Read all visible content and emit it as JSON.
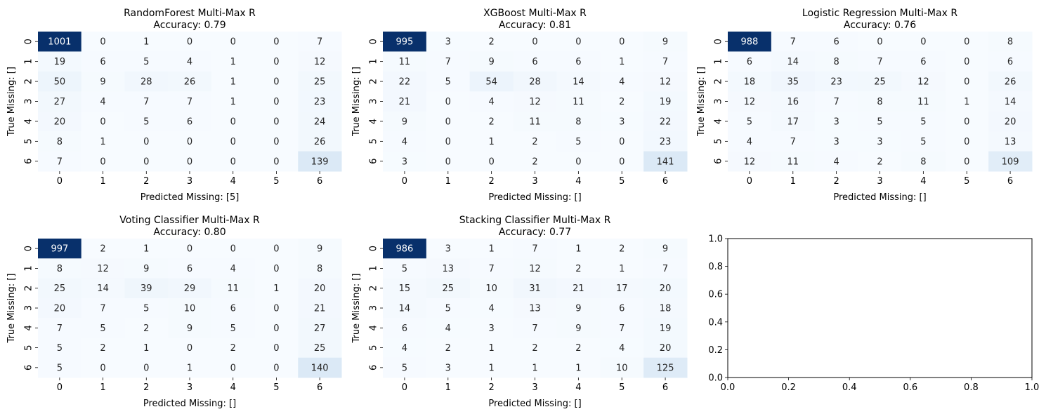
{
  "colors": {
    "cmap_low": "#f7fbff",
    "cmap_high": "#08306b",
    "text_dark": "#262626",
    "text_light": "#ffffff",
    "axis": "#000000"
  },
  "chart_data": [
    {
      "type": "heatmap",
      "title": "RandomForest Multi-Max R\nAccuracy: 0.79",
      "xlabel": "Predicted Missing: [5]",
      "ylabel": "True Missing: []",
      "x_categories": [
        "0",
        "1",
        "2",
        "3",
        "4",
        "5",
        "6"
      ],
      "y_categories": [
        "0",
        "1",
        "2",
        "3",
        "4",
        "5",
        "6"
      ],
      "values": [
        [
          1001,
          0,
          1,
          0,
          0,
          0,
          7
        ],
        [
          19,
          6,
          5,
          4,
          1,
          0,
          12
        ],
        [
          50,
          9,
          28,
          26,
          1,
          0,
          25
        ],
        [
          27,
          4,
          7,
          7,
          1,
          0,
          23
        ],
        [
          20,
          0,
          5,
          6,
          0,
          0,
          24
        ],
        [
          8,
          1,
          0,
          0,
          0,
          0,
          26
        ],
        [
          7,
          0,
          0,
          0,
          0,
          0,
          139
        ]
      ]
    },
    {
      "type": "heatmap",
      "title": "XGBoost Multi-Max R\nAccuracy: 0.81",
      "xlabel": "Predicted Missing: []",
      "ylabel": "True Missing: []",
      "x_categories": [
        "0",
        "1",
        "2",
        "3",
        "4",
        "5",
        "6"
      ],
      "y_categories": [
        "0",
        "1",
        "2",
        "3",
        "4",
        "5",
        "6"
      ],
      "values": [
        [
          995,
          3,
          2,
          0,
          0,
          0,
          9
        ],
        [
          11,
          7,
          9,
          6,
          6,
          1,
          7
        ],
        [
          22,
          5,
          54,
          28,
          14,
          4,
          12
        ],
        [
          21,
          0,
          4,
          12,
          11,
          2,
          19
        ],
        [
          9,
          0,
          2,
          11,
          8,
          3,
          22
        ],
        [
          4,
          0,
          1,
          2,
          5,
          0,
          23
        ],
        [
          3,
          0,
          0,
          2,
          0,
          0,
          141
        ]
      ]
    },
    {
      "type": "heatmap",
      "title": "Logistic Regression Multi-Max R\nAccuracy: 0.76",
      "xlabel": "Predicted Missing: []",
      "ylabel": "True Missing: []",
      "x_categories": [
        "0",
        "1",
        "2",
        "3",
        "4",
        "5",
        "6"
      ],
      "y_categories": [
        "0",
        "1",
        "2",
        "3",
        "4",
        "5",
        "6"
      ],
      "values": [
        [
          988,
          7,
          6,
          0,
          0,
          0,
          8
        ],
        [
          6,
          14,
          8,
          7,
          6,
          0,
          6
        ],
        [
          18,
          35,
          23,
          25,
          12,
          0,
          26
        ],
        [
          12,
          16,
          7,
          8,
          11,
          1,
          14
        ],
        [
          5,
          17,
          3,
          5,
          5,
          0,
          20
        ],
        [
          4,
          7,
          3,
          3,
          5,
          0,
          13
        ],
        [
          12,
          11,
          4,
          2,
          8,
          0,
          109
        ]
      ]
    },
    {
      "type": "heatmap",
      "title": "Voting Classifier Multi-Max R\nAccuracy: 0.80",
      "xlabel": "Predicted Missing: []",
      "ylabel": "True Missing: []",
      "x_categories": [
        "0",
        "1",
        "2",
        "3",
        "4",
        "5",
        "6"
      ],
      "y_categories": [
        "0",
        "1",
        "2",
        "3",
        "4",
        "5",
        "6"
      ],
      "values": [
        [
          997,
          2,
          1,
          0,
          0,
          0,
          9
        ],
        [
          8,
          12,
          9,
          6,
          4,
          0,
          8
        ],
        [
          25,
          14,
          39,
          29,
          11,
          1,
          20
        ],
        [
          20,
          7,
          5,
          10,
          6,
          0,
          21
        ],
        [
          7,
          5,
          2,
          9,
          5,
          0,
          27
        ],
        [
          5,
          2,
          1,
          0,
          2,
          0,
          25
        ],
        [
          5,
          0,
          0,
          1,
          0,
          0,
          140
        ]
      ]
    },
    {
      "type": "heatmap",
      "title": "Stacking Classifier Multi-Max R\nAccuracy: 0.77",
      "xlabel": "Predicted Missing: []",
      "ylabel": "True Missing: []",
      "x_categories": [
        "0",
        "1",
        "2",
        "3",
        "4",
        "5",
        "6"
      ],
      "y_categories": [
        "0",
        "1",
        "2",
        "3",
        "4",
        "5",
        "6"
      ],
      "values": [
        [
          986,
          3,
          1,
          7,
          1,
          2,
          9
        ],
        [
          5,
          13,
          7,
          12,
          2,
          1,
          7
        ],
        [
          15,
          25,
          10,
          31,
          21,
          17,
          20
        ],
        [
          14,
          5,
          4,
          13,
          9,
          6,
          18
        ],
        [
          6,
          4,
          3,
          7,
          9,
          7,
          19
        ],
        [
          4,
          2,
          1,
          2,
          2,
          4,
          20
        ],
        [
          5,
          3,
          1,
          1,
          1,
          10,
          125
        ]
      ]
    },
    {
      "type": "line",
      "title": "",
      "xlabel": "",
      "ylabel": "",
      "xlim": [
        0.0,
        1.0
      ],
      "ylim": [
        0.0,
        1.0
      ],
      "x_ticks": [
        "0.0",
        "0.2",
        "0.4",
        "0.6",
        "0.8",
        "1.0"
      ],
      "y_ticks": [
        "0.0",
        "0.2",
        "0.4",
        "0.6",
        "0.8",
        "1.0"
      ],
      "series": []
    }
  ]
}
